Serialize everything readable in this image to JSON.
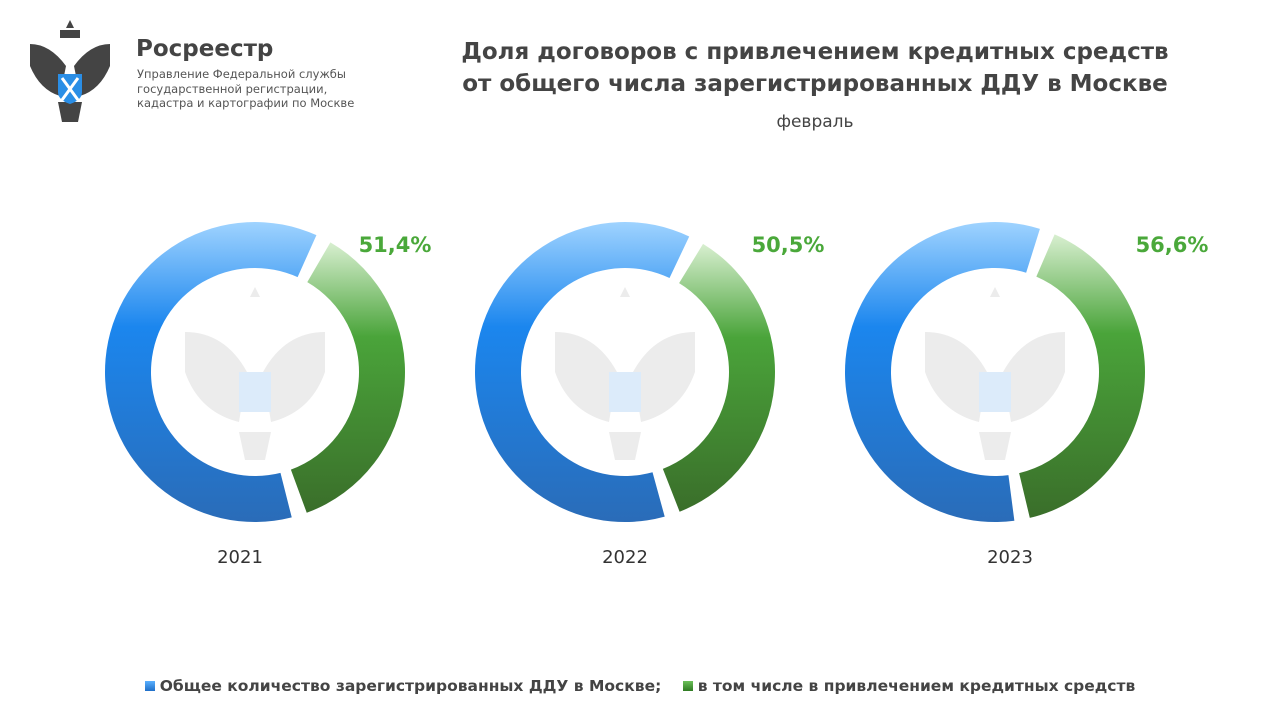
{
  "header": {
    "brand": "Росреестр",
    "subtitle_lines": [
      "Управление Федеральной службы",
      "государственной регистрации,",
      "кадастра и картографии по Москве"
    ],
    "logo_icon": "double-headed-eagle-emblem"
  },
  "chart_data": {
    "type": "pie",
    "title_lines": [
      "Доля договоров с привлечением кредитных средств",
      "от общего числа зарегистрированных ДДУ в Москве"
    ],
    "subtitle": "февраль",
    "charts": [
      {
        "year": "2021",
        "share_label": "51,4%",
        "share": 51.4
      },
      {
        "year": "2022",
        "share_label": "50,5%",
        "share": 50.5
      },
      {
        "year": "2023",
        "share_label": "56,6%",
        "share": 56.6
      }
    ],
    "legend": [
      {
        "label": "Общее количество зарегистрированных ДДУ в Москве;",
        "color": "#1f7fe0"
      },
      {
        "label": "в том числе в привлечением кредитных средств",
        "color": "#3f9a2f"
      }
    ],
    "colors": {
      "total": "#1f7fe0",
      "credit": "#3f9a2f",
      "label": "#4aa83a"
    }
  }
}
